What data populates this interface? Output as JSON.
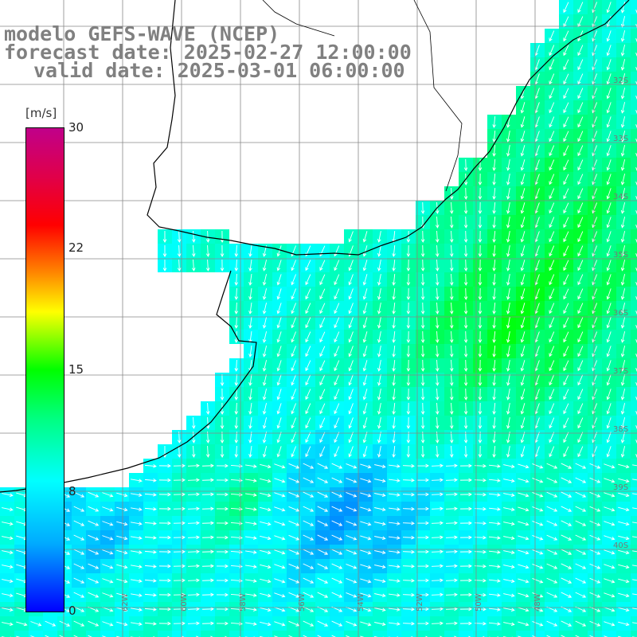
{
  "title": {
    "line1": "modelo GEFS-WAVE (NCEP)",
    "line2": "forecast date: 2025-02-27 12:00:00",
    "line3": "valid date: 2025-03-01 06:00:00"
  },
  "colorbar": {
    "unit": "[m/s]",
    "ticks": [
      "30",
      "22",
      "15",
      "8",
      "0"
    ],
    "tick_values": [
      30,
      22,
      15,
      8,
      0
    ],
    "min": 0,
    "max": 30
  },
  "map": {
    "variable": "wind speed with direction arrows",
    "lat_labels": [
      "32S",
      "33S",
      "34S",
      "35S",
      "36S",
      "37S",
      "38S",
      "39S",
      "40S"
    ],
    "lon_labels": [
      "62W",
      "60W",
      "58W",
      "56W",
      "54W",
      "52W",
      "50W",
      "48W"
    ],
    "colors": {
      "ocean_low": "#0000ff",
      "ocean_mid": "#00ffff",
      "ocean_high": "#00ff00",
      "land": "#ffffff",
      "grid": "#888888"
    }
  }
}
